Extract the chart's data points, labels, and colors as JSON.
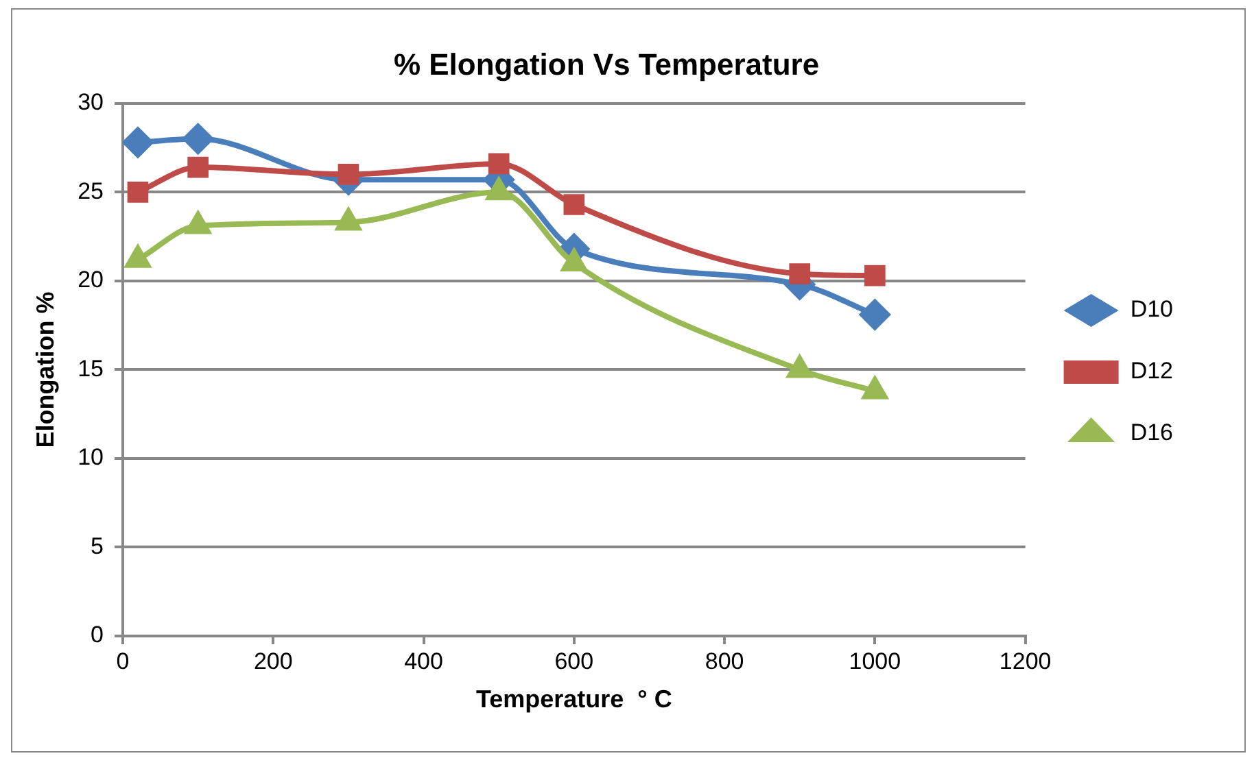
{
  "chart_data": {
    "type": "line",
    "title": "% Elongation Vs Temperature",
    "xlabel": "Temperature  ° C",
    "ylabel": "Elongation %",
    "x": [
      20,
      100,
      300,
      500,
      600,
      900,
      1000
    ],
    "series": [
      {
        "name": "D10",
        "color": "#4a7ebb",
        "marker": "diamond",
        "values": [
          27.8,
          28,
          25.7,
          25.7,
          21.8,
          19.8,
          18.1
        ]
      },
      {
        "name": "D12",
        "color": "#be4b48",
        "marker": "square",
        "values": [
          25,
          26.4,
          26,
          26.6,
          24.3,
          20.4,
          20.3
        ]
      },
      {
        "name": "D16",
        "color": "#98b954",
        "marker": "triangle",
        "values": [
          21.2,
          23.1,
          23.3,
          25,
          21,
          15,
          13.8
        ]
      }
    ],
    "xlim": [
      0,
      1200
    ],
    "xticks": [
      0,
      200,
      400,
      600,
      800,
      1000,
      1200
    ],
    "ylim": [
      0,
      30
    ],
    "yticks": [
      0,
      5,
      10,
      15,
      20,
      25,
      30
    ],
    "grid": "y",
    "legend": "right"
  }
}
